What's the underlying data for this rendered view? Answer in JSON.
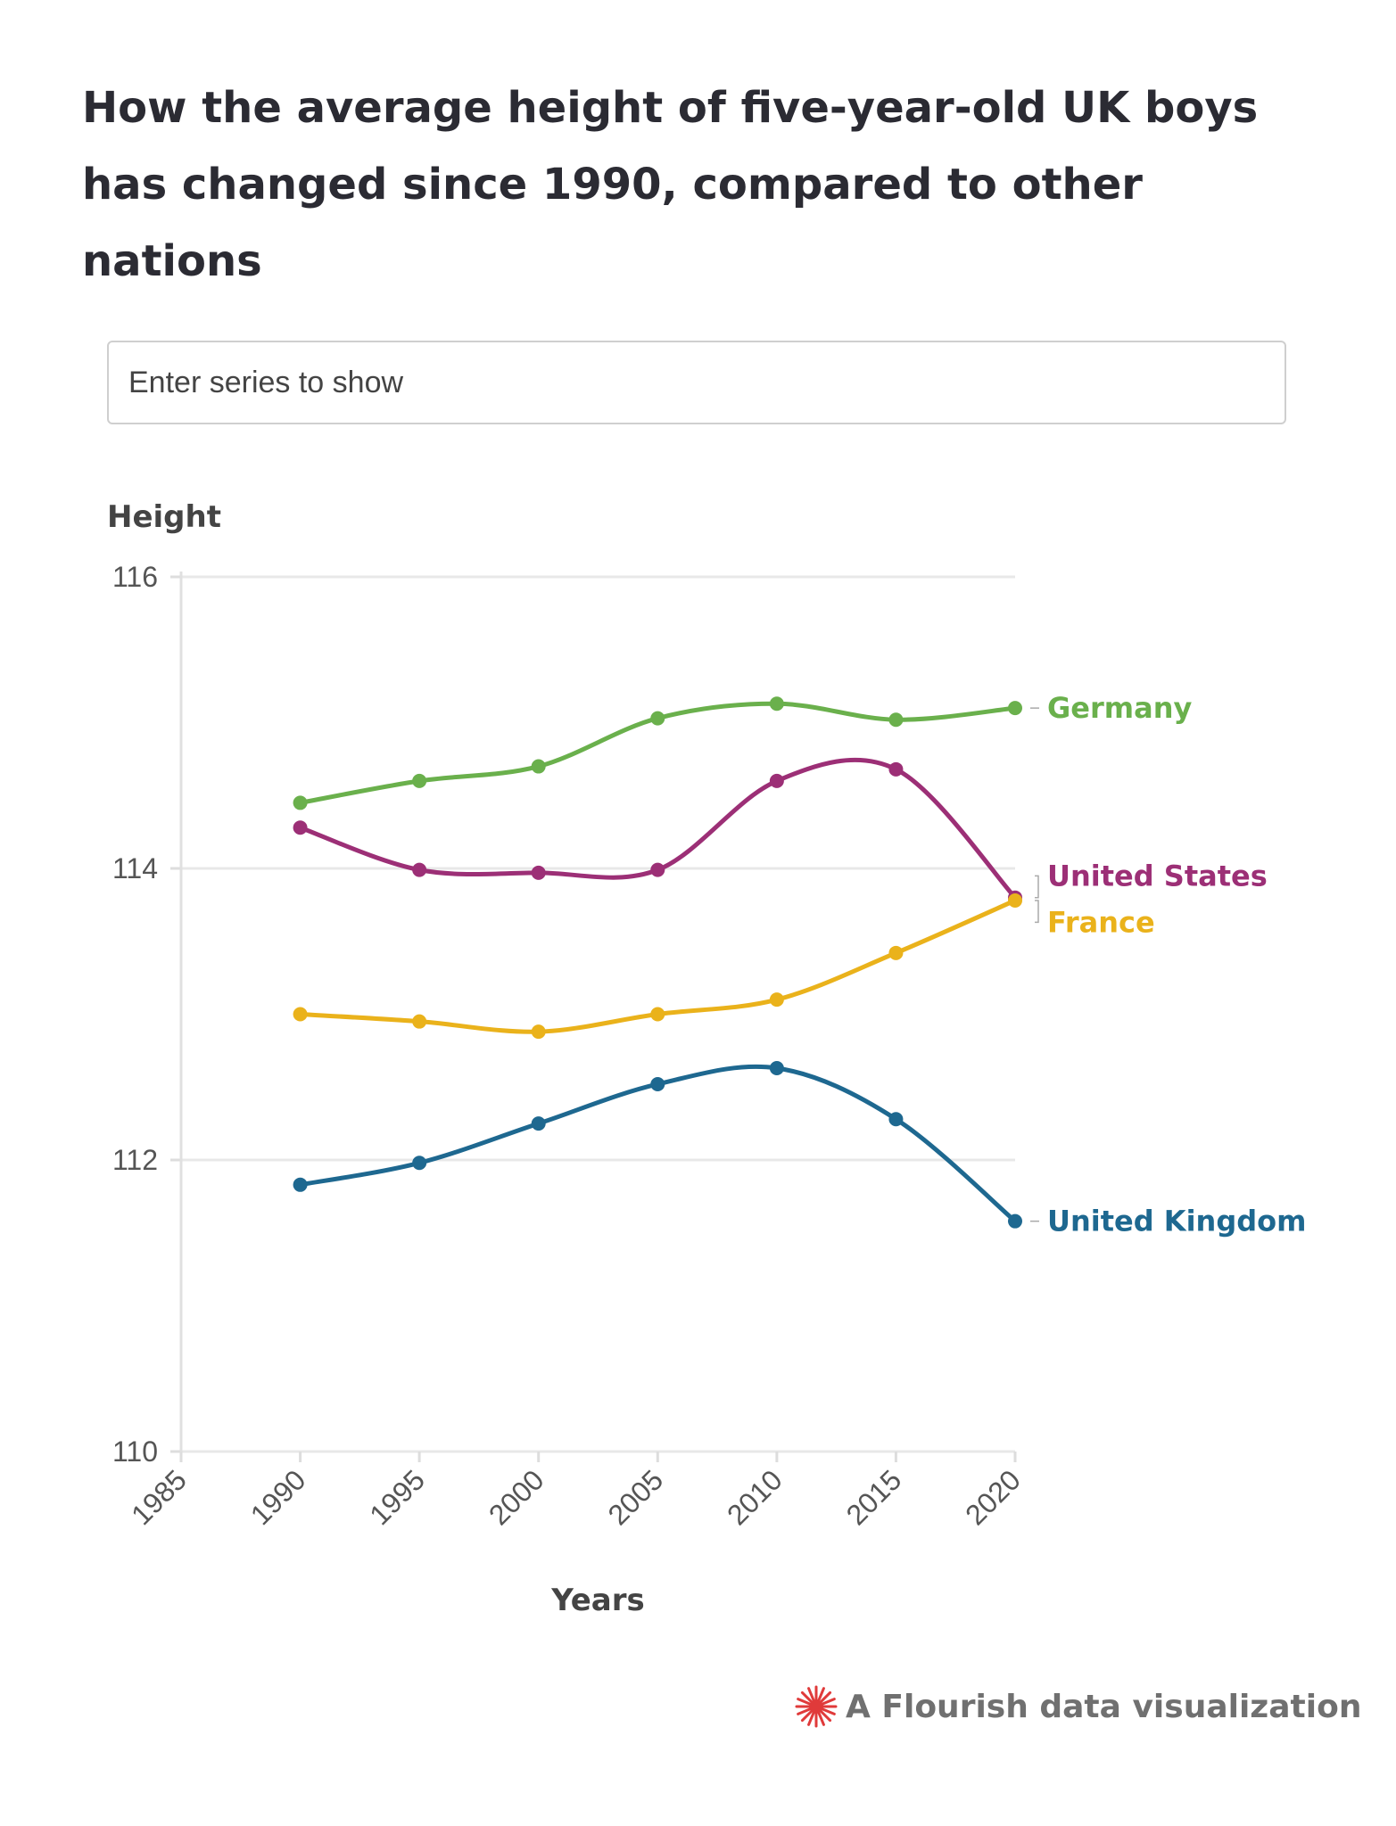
{
  "title": "How the average height of five-year-old UK boys has changed since 1990, compared to other nations",
  "search": {
    "placeholder": "Enter series to show"
  },
  "footer": {
    "text": "A Flourish data visualization"
  },
  "colors": {
    "Germany": "#6ab04c",
    "United States": "#9c2f76",
    "France": "#eab21b",
    "United Kingdom": "#1e6890",
    "grid": "#e8e8e8",
    "brand": "#e03a3a"
  },
  "chart_data": {
    "type": "line",
    "ylabel": "Height",
    "xlabel": "Years",
    "ylim": [
      110,
      116
    ],
    "yticks": [
      "110",
      "112",
      "114",
      "116"
    ],
    "xlim": [
      1985,
      2020
    ],
    "xticks": [
      "1985",
      "1990",
      "1995",
      "2000",
      "2005",
      "2010",
      "2015",
      "2020"
    ],
    "x": [
      1990,
      1995,
      2000,
      2005,
      2010,
      2015,
      2020
    ],
    "grid": true,
    "series": [
      {
        "name": "Germany",
        "values": [
          114.45,
          114.6,
          114.7,
          115.03,
          115.13,
          115.02,
          115.1
        ]
      },
      {
        "name": "United States",
        "values": [
          114.28,
          113.99,
          113.97,
          113.99,
          114.6,
          114.68,
          113.8
        ]
      },
      {
        "name": "France",
        "values": [
          113.0,
          112.95,
          112.88,
          113.0,
          113.1,
          113.42,
          113.78
        ]
      },
      {
        "name": "United Kingdom",
        "values": [
          111.83,
          111.98,
          112.25,
          112.52,
          112.63,
          112.28,
          111.58
        ]
      }
    ]
  }
}
